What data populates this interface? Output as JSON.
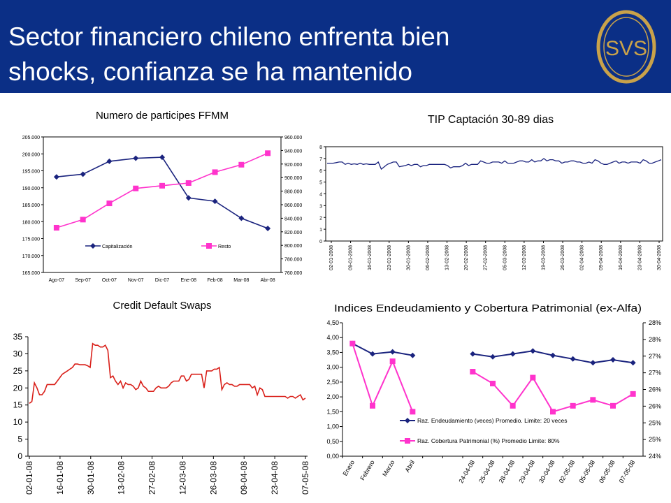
{
  "slide": {
    "title": "Sector financiero chileno enfrenta bien shocks, confianza se ha mantenido",
    "logo_text": "SVS",
    "colors": {
      "banner": "#0b2f86",
      "logo_gold": "#c9a24a"
    }
  },
  "chart_data": [
    {
      "type": "line",
      "title": "Numero de participes FFMM",
      "categories": [
        "Ago-07",
        "Sep-07",
        "Oct-07",
        "Nov-07",
        "Dic-07",
        "Ene-08",
        "Feb-08",
        "Mar-08",
        "Abr-08"
      ],
      "series": [
        {
          "name": "Capitalización",
          "axis": "left",
          "color": "#1a237e",
          "marker": "diamond",
          "values": [
            193200,
            194000,
            197800,
            198700,
            199000,
            187000,
            186000,
            181000,
            178000
          ]
        },
        {
          "name": "Resto",
          "axis": "right",
          "color": "#ff33cc",
          "marker": "square",
          "values": [
            826000,
            838000,
            862000,
            884000,
            888000,
            892000,
            908000,
            919000,
            936000
          ]
        }
      ],
      "y_left": {
        "min": 165000,
        "max": 205000,
        "ticks": [
          "165.000",
          "170.000",
          "175.000",
          "180.000",
          "185.000",
          "190.000",
          "195.000",
          "200.000",
          "205.000"
        ]
      },
      "y_right": {
        "min": 760000,
        "max": 960000,
        "ticks": [
          "760.000",
          "780.000",
          "800.000",
          "820.000",
          "840.000",
          "860.000",
          "880.000",
          "900.000",
          "920.000",
          "940.000",
          "960.000"
        ]
      },
      "legend": "inside-bottom",
      "grid": false
    },
    {
      "type": "line",
      "title": "TIP  Captación 30-89 dias",
      "x_ticks": [
        "02-01-2008",
        "09-01-2008",
        "16-01-2008",
        "23-01-2008",
        "30-01-2008",
        "06-02-2008",
        "13-02-2008",
        "20-02-2008",
        "27-02-2008",
        "05-03-2008",
        "12-03-2008",
        "19-03-2008",
        "26-03-2008",
        "02-04-2008",
        "09-04-2008",
        "16-04-2008",
        "23-04-2008",
        "30-04-2008"
      ],
      "y_ticks": [
        "0",
        "1",
        "2",
        "3",
        "4",
        "5",
        "6",
        "7",
        "8"
      ],
      "ylim": [
        0,
        8
      ],
      "series": [
        {
          "color": "#1a237e",
          "values": [
            6.6,
            6.6,
            6.6,
            6.65,
            6.7,
            6.7,
            6.5,
            6.6,
            6.5,
            6.55,
            6.5,
            6.6,
            6.5,
            6.55,
            6.5,
            6.5,
            6.5,
            6.7,
            6.1,
            6.3,
            6.5,
            6.6,
            6.7,
            6.7,
            6.3,
            6.35,
            6.4,
            6.5,
            6.4,
            6.5,
            6.5,
            6.3,
            6.4,
            6.4,
            6.5,
            6.5,
            6.5,
            6.5,
            6.5,
            6.5,
            6.4,
            6.2,
            6.3,
            6.3,
            6.3,
            6.4,
            6.6,
            6.4,
            6.5,
            6.5,
            6.5,
            6.8,
            6.7,
            6.6,
            6.6,
            6.7,
            6.7,
            6.7,
            6.6,
            6.8,
            6.6,
            6.6,
            6.6,
            6.7,
            6.8,
            6.8,
            6.7,
            6.7,
            6.9,
            6.7,
            6.8,
            6.8,
            7.0,
            6.8,
            6.9,
            6.9,
            6.8,
            6.8,
            6.6,
            6.7,
            6.7,
            6.8,
            6.8,
            6.7,
            6.7,
            6.6,
            6.6,
            6.7,
            6.6,
            6.9,
            6.8,
            6.6,
            6.5,
            6.5,
            6.6,
            6.7,
            6.8,
            6.6,
            6.7,
            6.7,
            6.6,
            6.7,
            6.7,
            6.7,
            6.6,
            6.9,
            6.8,
            6.6,
            6.6,
            6.7,
            6.8,
            6.9
          ]
        }
      ],
      "grid": false
    },
    {
      "type": "line",
      "title": "Credit Default Swaps",
      "x_ticks": [
        "02-01-08",
        "16-01-08",
        "30-01-08",
        "13-02-08",
        "27-02-08",
        "12-03-08",
        "26-03-08",
        "09-04-08",
        "23-04-08",
        "07-05-08"
      ],
      "y_ticks": [
        "0",
        "5",
        "10",
        "15",
        "20",
        "25",
        "30",
        "35"
      ],
      "ylim": [
        0,
        35
      ],
      "series": [
        {
          "color": "#d9201a",
          "values": [
            15.5,
            16,
            21.5,
            20,
            18,
            18,
            19,
            21,
            21,
            21,
            21,
            22,
            23,
            24,
            24.5,
            25,
            25.5,
            26,
            27,
            27,
            26.8,
            26.8,
            26.8,
            26.5,
            26,
            33,
            32.5,
            32.5,
            32,
            32,
            32.5,
            31,
            23,
            23.5,
            22,
            21,
            22,
            20,
            21.5,
            21,
            21,
            20.5,
            19.5,
            20,
            22,
            20.5,
            20,
            19,
            19,
            19,
            20,
            20.5,
            20,
            20,
            20,
            20.5,
            21.5,
            22,
            22,
            22,
            23.5,
            23.5,
            22,
            22.5,
            24,
            24,
            24,
            24,
            24,
            20,
            25,
            25,
            25,
            25.5,
            25.5,
            26,
            19.5,
            21,
            21.5,
            21,
            21,
            20.5,
            20.5,
            21,
            21,
            21,
            21,
            21,
            20,
            20.5,
            18,
            20,
            19.5,
            17.5,
            17.5,
            17.5,
            17.5,
            17.5,
            17.5,
            17.5,
            17.5,
            17.5,
            17,
            17.5,
            17.5,
            17,
            17.5,
            18,
            16.5,
            17
          ]
        }
      ],
      "grid": false
    },
    {
      "type": "line",
      "title": "Indices Endeudamiento y Cobertura Patrimonial (ex-Alfa)",
      "categories": [
        "Enero",
        "Febrero",
        "Marzo",
        "Abril",
        "",
        "",
        "24-04-08",
        "25-04-08",
        "28-04-08",
        "29-04-08",
        "30-04-08",
        "02-05-08",
        "05-05-08",
        "06-05-08",
        "07-05-08"
      ],
      "series": [
        {
          "name": "Raz. Endeudamiento (veces) Promedio. Limite: 20 veces",
          "axis": "left",
          "color": "#1a237e",
          "marker": "diamond",
          "values": [
            3.8,
            3.45,
            3.52,
            3.4,
            null,
            null,
            3.45,
            3.35,
            3.45,
            3.55,
            3.4,
            3.28,
            3.15,
            3.25,
            3.15
          ]
        },
        {
          "name": "Raz. Cobertura Patrimonial (%) Promedio Limite: 80%",
          "axis": "right",
          "color": "#ff33cc",
          "marker": "square",
          "values": [
            27.8,
            25.7,
            27.2,
            25.5,
            null,
            null,
            26.85,
            26.45,
            25.7,
            26.65,
            25.5,
            25.7,
            25.9,
            25.7,
            26.1
          ]
        }
      ],
      "y_left": {
        "min": 0,
        "max": 4.5,
        "ticks": [
          "0,00",
          "0,50",
          "1,00",
          "1,50",
          "2,00",
          "2,50",
          "3,00",
          "3,50",
          "4,00",
          "4,50"
        ]
      },
      "y_right": {
        "min": 24,
        "max": 28.5,
        "ticks": [
          "24%",
          "25%",
          "25%",
          "26%",
          "26%",
          "27%",
          "27%",
          "28%",
          "28%"
        ]
      },
      "legend": "inside-bottom",
      "grid": false
    }
  ]
}
